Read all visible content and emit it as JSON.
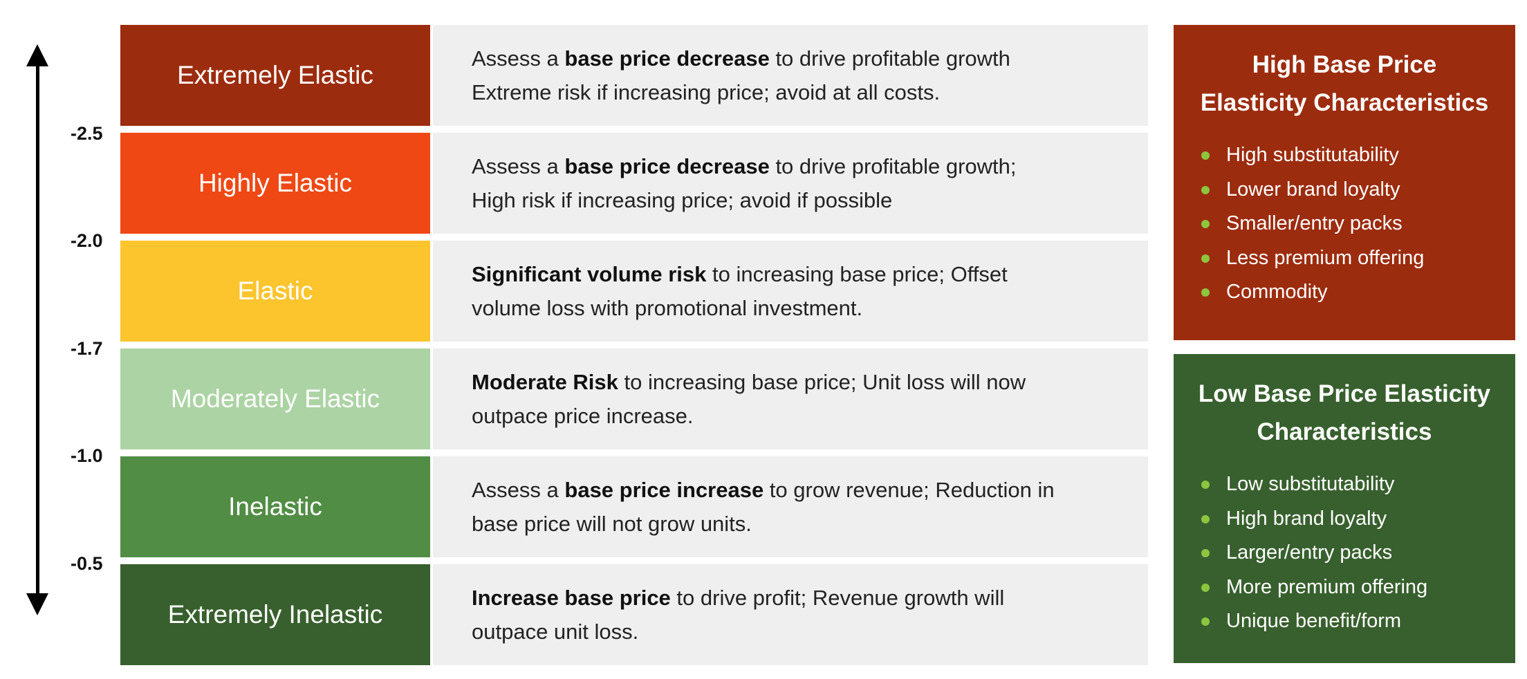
{
  "axis": {
    "ticks": [
      "-2.5",
      "-2.0",
      "-1.7",
      "-1.0",
      "-0.5"
    ]
  },
  "rows": [
    {
      "label": "Extremely Elastic",
      "color": "#9c2c0e",
      "lines": [
        [
          {
            "t": "Assess a ",
            "b": false
          },
          {
            "t": "base price decrease",
            "b": true
          },
          {
            "t": " to drive profitable growth",
            "b": false
          }
        ],
        [
          {
            "t": "Extreme risk if increasing price; avoid at all costs.",
            "b": false
          }
        ]
      ]
    },
    {
      "label": "Highly Elastic",
      "color": "#ef4814",
      "lines": [
        [
          {
            "t": "Assess a ",
            "b": false
          },
          {
            "t": "base price decrease",
            "b": true
          },
          {
            "t": " to drive profitable growth;",
            "b": false
          }
        ],
        [
          {
            "t": "High risk if increasing price; avoid if possible",
            "b": false
          }
        ]
      ]
    },
    {
      "label": "Elastic",
      "color": "#fcc42d",
      "lines": [
        [
          {
            "t": "Significant volume risk",
            "b": true
          },
          {
            "t": " to increasing base price; Offset",
            "b": false
          }
        ],
        [
          {
            "t": "volume loss with promotional investment.",
            "b": false
          }
        ]
      ]
    },
    {
      "label": "Moderately Elastic",
      "color": "#acd3a4",
      "lines": [
        [
          {
            "t": "Moderate Risk",
            "b": true
          },
          {
            "t": " to increasing base price; Unit loss will now",
            "b": false
          }
        ],
        [
          {
            "t": "outpace price increase.",
            "b": false
          }
        ]
      ]
    },
    {
      "label": "Inelastic",
      "color": "#518d45",
      "lines": [
        [
          {
            "t": "Assess a ",
            "b": false
          },
          {
            "t": "base price increase",
            "b": true
          },
          {
            "t": " to grow revenue; Reduction in",
            "b": false
          }
        ],
        [
          {
            "t": "base price will not grow units.",
            "b": false
          }
        ]
      ]
    },
    {
      "label": "Extremely Inelastic",
      "color": "#38602e",
      "lines": [
        [
          {
            "t": "Increase base price",
            "b": true
          },
          {
            "t": " to drive profit; Revenue growth will",
            "b": false
          }
        ],
        [
          {
            "t": "outpace unit loss.",
            "b": false
          }
        ]
      ]
    }
  ],
  "panels": {
    "high": {
      "title_line1": "High Base Price",
      "title_line2": "Elasticity Characteristics",
      "color": "#9c2c0e",
      "items": [
        "High substitutability",
        "Lower brand loyalty",
        "Smaller/entry packs",
        "Less premium offering",
        "Commodity"
      ]
    },
    "low": {
      "title_line1": "Low Base Price Elasticity",
      "title_line2": "Characteristics",
      "color": "#38602e",
      "items": [
        "Low substitutability",
        "High brand loyalty",
        "Larger/entry packs",
        "More premium offering",
        "Unique benefit/form"
      ]
    }
  }
}
